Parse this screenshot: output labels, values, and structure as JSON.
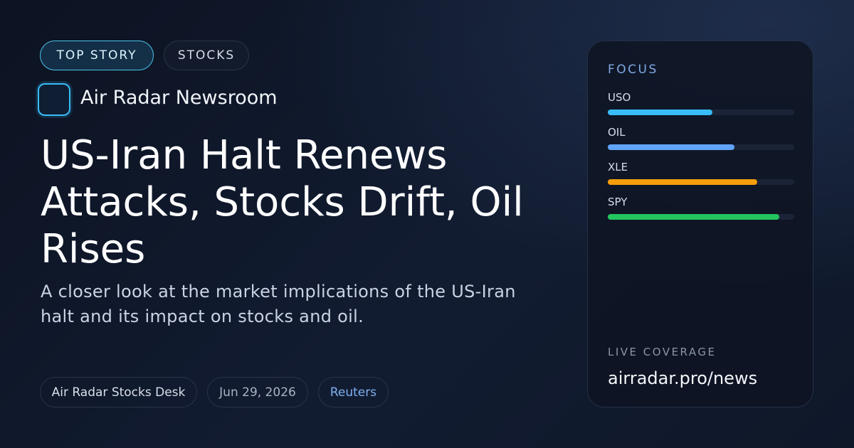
{
  "tags": [
    "TOP STORY",
    "STOCKS"
  ],
  "brand": "Air Radar Newsroom",
  "headline": "US-Iran Halt Renews Attacks, Stocks Drift, Oil Rises",
  "summary": "A closer look at the market implications of the US-Iran halt and its impact on stocks and oil.",
  "meta": [
    "Air Radar Stocks Desk",
    "Jun 29, 2026",
    "Reuters"
  ],
  "focus": {
    "title": "FOCUS",
    "xlim": [
      0,
      100
    ],
    "items": [
      {
        "name": "USO",
        "color": "#38bdf8",
        "value": 56
      },
      {
        "name": "OIL",
        "color": "#60a5fa",
        "value": 68
      },
      {
        "name": "XLE",
        "color": "#f59e0b",
        "value": 80
      },
      {
        "name": "SPY",
        "color": "#22c55e",
        "value": 92
      }
    ]
  },
  "footer": {
    "label": "LIVE COVERAGE",
    "url": "airradar.pro/news"
  }
}
